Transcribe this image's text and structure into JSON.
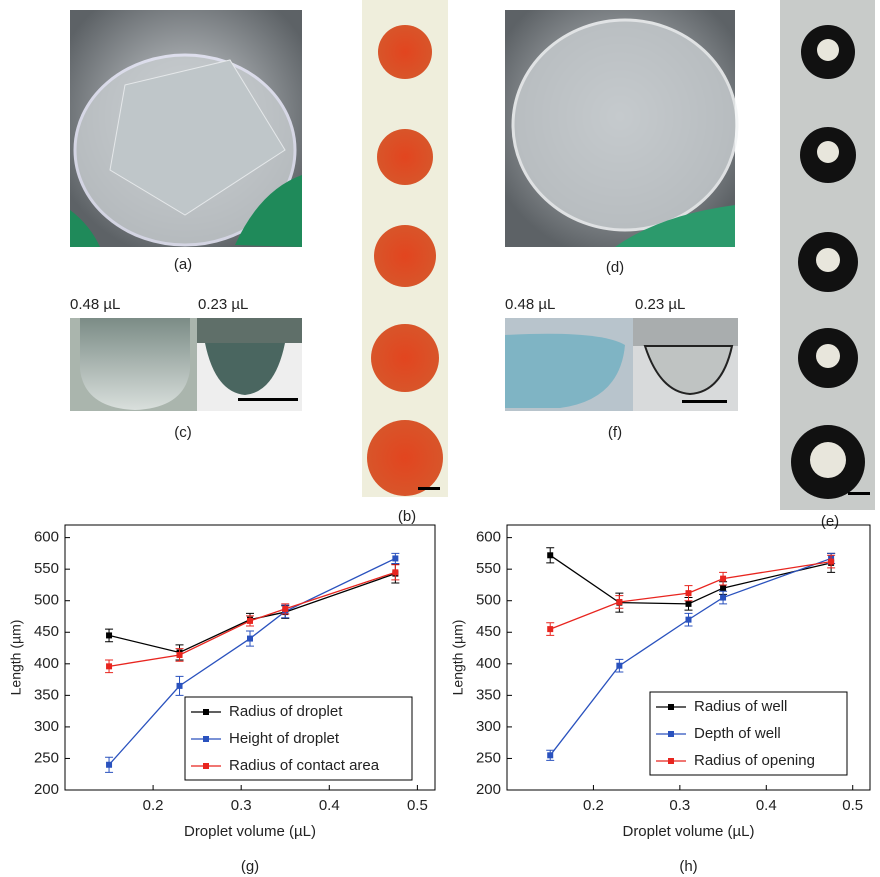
{
  "panel_labels": [
    "(a)",
    "(b)",
    "(c)",
    "(d)",
    "(e)",
    "(f)"
  ],
  "volume_labels": [
    "0.48 µL",
    "0.23 µL",
    "0.48 µL",
    "0.23 µL"
  ],
  "chart_data": [
    {
      "type": "line",
      "caption": "(g)",
      "x_label": "Droplet volume (µL)",
      "y_label": "Length (µm)",
      "x": [
        0.15,
        0.23,
        0.31,
        0.35,
        0.475
      ],
      "series": [
        {
          "name": "Radius of droplet",
          "color": "#000000",
          "values": [
            445,
            418,
            470,
            482,
            543
          ],
          "errors": [
            10,
            12,
            10,
            10,
            15
          ]
        },
        {
          "name": "Height of droplet",
          "color": "#2a52be",
          "values": [
            240,
            365,
            440,
            483,
            567
          ],
          "errors": [
            12,
            15,
            12,
            10,
            8
          ]
        },
        {
          "name": "Radius of contact area",
          "color": "#e8251f",
          "values": [
            396,
            414,
            468,
            487,
            545
          ],
          "errors": [
            10,
            10,
            8,
            8,
            12
          ]
        }
      ],
      "xlim": [
        0.1,
        0.52
      ],
      "xticks": [
        0.2,
        0.3,
        0.4,
        0.5
      ],
      "ylim": [
        200,
        620
      ],
      "yticks": [
        200,
        250,
        300,
        350,
        400,
        450,
        500,
        550,
        600
      ],
      "legend": "lower right"
    },
    {
      "type": "line",
      "caption": "(h)",
      "x_label": "Droplet volume (µL)",
      "y_label": "Length (µm)",
      "x": [
        0.15,
        0.23,
        0.31,
        0.35,
        0.475
      ],
      "series": [
        {
          "name": "Radius of well",
          "color": "#000000",
          "values": [
            572,
            497,
            495,
            520,
            560
          ],
          "errors": [
            12,
            15,
            10,
            10,
            15
          ]
        },
        {
          "name": "Depth of well",
          "color": "#2a52be",
          "values": [
            255,
            397,
            470,
            505,
            567
          ],
          "errors": [
            8,
            10,
            10,
            10,
            8
          ]
        },
        {
          "name": "Radius of opening",
          "color": "#e8251f",
          "values": [
            455,
            498,
            512,
            535,
            562
          ],
          "errors": [
            10,
            10,
            12,
            10,
            10
          ]
        }
      ],
      "xlim": [
        0.1,
        0.52
      ],
      "xticks": [
        0.2,
        0.3,
        0.4,
        0.5
      ],
      "ylim": [
        200,
        620
      ],
      "yticks": [
        200,
        250,
        300,
        350,
        400,
        450,
        500,
        550,
        600
      ],
      "legend": "lower right"
    }
  ]
}
